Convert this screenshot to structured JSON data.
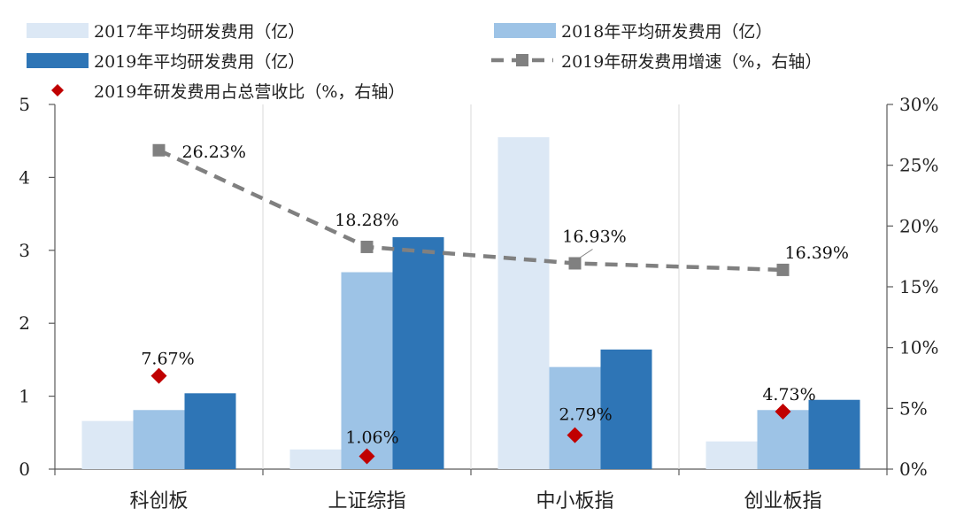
{
  "chart_data": {
    "type": "bar",
    "categories": [
      "科创板",
      "上证综指",
      "中小板指",
      "创业板指"
    ],
    "series": [
      {
        "name": "2017年平均研发费用（亿）",
        "type": "bar",
        "axis": "left",
        "color": "#dce8f5",
        "values": [
          0.66,
          0.27,
          4.55,
          0.38
        ]
      },
      {
        "name": "2018年平均研发费用（亿）",
        "type": "bar",
        "axis": "left",
        "color": "#9dc3e6",
        "values": [
          0.81,
          2.7,
          1.4,
          0.81
        ]
      },
      {
        "name": "2019年平均研发费用（亿）",
        "type": "bar",
        "axis": "left",
        "color": "#2e75b6",
        "values": [
          1.04,
          3.18,
          1.64,
          0.95
        ]
      },
      {
        "name": "2019年研发费用增速（%，右轴）",
        "type": "line",
        "axis": "right",
        "color": "#808080",
        "style": "dashed",
        "marker": "square",
        "values": [
          26.23,
          18.28,
          16.93,
          16.39
        ],
        "labels": [
          "26.23%",
          "18.28%",
          "16.93%",
          "16.39%"
        ]
      },
      {
        "name": "2019年研发费用占总营收比（%，右轴）",
        "type": "scatter",
        "axis": "right",
        "color": "#c00000",
        "marker": "diamond",
        "values": [
          7.67,
          1.06,
          2.79,
          4.73
        ],
        "labels": [
          "7.67%",
          "1.06%",
          "2.79%",
          "4.73%"
        ]
      }
    ],
    "y_left": {
      "min": 0,
      "max": 5,
      "ticks": [
        "0",
        "1",
        "2",
        "3",
        "4",
        "5"
      ]
    },
    "y_right": {
      "min": 0,
      "max": 30,
      "ticks": [
        "0%",
        "5%",
        "10%",
        "15%",
        "20%",
        "25%",
        "30%"
      ]
    },
    "legend_position": "top",
    "grid": "vertical category separators"
  }
}
